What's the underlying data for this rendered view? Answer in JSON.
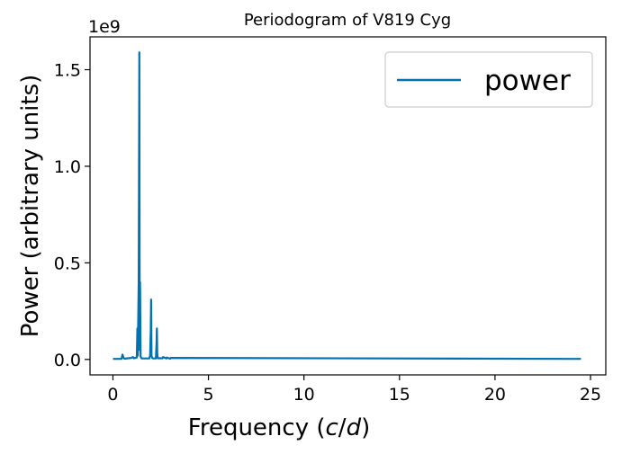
{
  "chart_data": {
    "type": "line",
    "title": "Periodogram of V819 Cyg",
    "xlabel": "Frequency (c/d)",
    "xlabel_parts": {
      "pre": "Frequency (",
      "c": "c",
      "slash": "/",
      "d": "d",
      "post": ")"
    },
    "ylabel": "Power (arbitrary units)",
    "y_offset_label": "1e9",
    "xlim": [
      -1.2,
      25.8
    ],
    "ylim": [
      -0.08,
      1.67
    ],
    "x_ticks": [
      0,
      5,
      10,
      15,
      20,
      25
    ],
    "x_tick_labels": [
      "0",
      "5",
      "10",
      "15",
      "20",
      "25"
    ],
    "y_ticks": [
      0.0,
      0.5,
      1.0,
      1.5
    ],
    "y_tick_labels": [
      "0.0",
      "0.5",
      "1.0",
      "1.5"
    ],
    "legend": {
      "position": "top-right",
      "entries": [
        "power"
      ]
    },
    "grid": false,
    "series": [
      {
        "name": "power",
        "color": "#0072b2",
        "x": [
          0.0,
          0.45,
          0.5,
          0.55,
          0.6,
          0.95,
          1.05,
          1.1,
          1.25,
          1.28,
          1.3,
          1.32,
          1.35,
          1.38,
          1.4,
          1.42,
          1.45,
          1.5,
          1.9,
          1.95,
          1.98,
          2.0,
          2.02,
          2.05,
          2.1,
          2.25,
          2.28,
          2.3,
          2.32,
          2.35,
          2.6,
          2.62,
          2.8,
          2.82,
          3.0,
          3.02,
          24.5
        ],
        "y": [
          0.003,
          0.003,
          0.025,
          0.01,
          0.004,
          0.008,
          0.012,
          0.006,
          0.01,
          0.16,
          0.02,
          0.18,
          0.4,
          1.59,
          0.05,
          0.4,
          0.015,
          0.005,
          0.005,
          0.02,
          0.15,
          0.31,
          0.02,
          0.008,
          0.005,
          0.005,
          0.08,
          0.16,
          0.03,
          0.006,
          0.006,
          0.012,
          0.005,
          0.01,
          0.004,
          0.008,
          0.003
        ]
      }
    ]
  }
}
